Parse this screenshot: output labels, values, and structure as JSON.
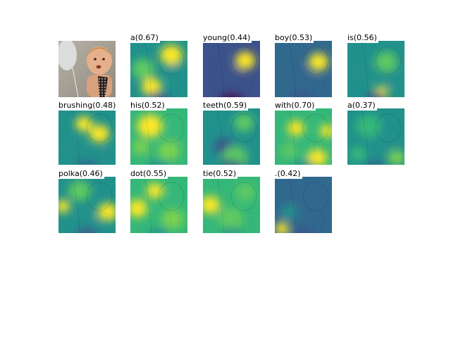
{
  "figure": {
    "panels": [
      {
        "type": "photo",
        "word": "",
        "score": ""
      },
      {
        "type": "map",
        "word": "a",
        "score": "0.67",
        "palette": [
          "#3b528b",
          "#21918c",
          "#5ec962",
          "#fde725"
        ]
      },
      {
        "type": "map",
        "word": "young",
        "score": "0.44",
        "palette": [
          "#440154",
          "#3b528b",
          "#21918c",
          "#fde725"
        ]
      },
      {
        "type": "map",
        "word": "boy",
        "score": "0.53",
        "palette": [
          "#3b528b",
          "#31688e",
          "#21918c",
          "#fde725"
        ]
      },
      {
        "type": "map",
        "word": "is",
        "score": "0.56",
        "palette": [
          "#3b528b",
          "#21918c",
          "#5ec962",
          "#fde725"
        ]
      },
      {
        "type": "map",
        "word": "brushing",
        "score": "0.48",
        "palette": [
          "#31688e",
          "#21918c",
          "#5ec962",
          "#fde725"
        ]
      },
      {
        "type": "map",
        "word": "his",
        "score": "0.52",
        "palette": [
          "#21918c",
          "#35b779",
          "#7ad151",
          "#fde725"
        ]
      },
      {
        "type": "map",
        "word": "teeth",
        "score": "0.59",
        "palette": [
          "#3b528b",
          "#21918c",
          "#5ec962",
          "#fde725"
        ]
      },
      {
        "type": "map",
        "word": "with",
        "score": "0.70",
        "palette": [
          "#21918c",
          "#35b779",
          "#5ec962",
          "#fde725"
        ]
      },
      {
        "type": "map",
        "word": "a",
        "score": "0.37",
        "palette": [
          "#31688e",
          "#21918c",
          "#35b779",
          "#7ad151"
        ]
      },
      {
        "type": "map",
        "word": "polka",
        "score": "0.46",
        "palette": [
          "#3b528b",
          "#21918c",
          "#5ec962",
          "#fde725"
        ]
      },
      {
        "type": "map",
        "word": "dot",
        "score": "0.55",
        "palette": [
          "#21918c",
          "#35b779",
          "#7ad151",
          "#fde725"
        ]
      },
      {
        "type": "map",
        "word": "tie",
        "score": "0.52",
        "palette": [
          "#21918c",
          "#35b779",
          "#5ec962",
          "#fde725"
        ]
      },
      {
        "type": "map",
        "word": ".",
        "score": "0.42",
        "palette": [
          "#3b528b",
          "#31688e",
          "#21918c",
          "#fde725"
        ]
      }
    ]
  }
}
